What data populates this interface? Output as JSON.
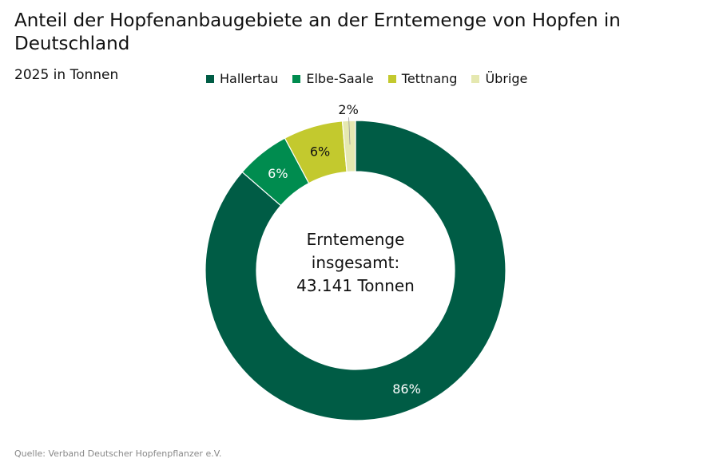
{
  "title": "Anteil der Hopfenanbaugebiete an der Erntemenge von Hopfen in Deutschland",
  "subtitle": "2025 in Tonnen",
  "source": "Quelle: Verband Deutscher Hopfenpflanzer e.V.",
  "chart_data": {
    "type": "pie",
    "donut": true,
    "legend_position": "top",
    "center_label": [
      "Erntemenge",
      "insgesamt:",
      "43.141 Tonnen"
    ],
    "series": [
      {
        "name": "Hallertau",
        "value": 86.4,
        "label": "86%",
        "color": "#005c45",
        "label_color": "#ffffff"
      },
      {
        "name": "Elbe-Saale",
        "value": 5.8,
        "label": "6%",
        "color": "#008c4f",
        "label_color": "#ffffff"
      },
      {
        "name": "Tettnang",
        "value": 6.4,
        "label": "6%",
        "color": "#c3c92e",
        "label_color": "#111111"
      },
      {
        "name": "Übrige",
        "value": 1.4,
        "label": "2%",
        "color": "#e5e8b0",
        "label_color": "#111111"
      }
    ]
  }
}
